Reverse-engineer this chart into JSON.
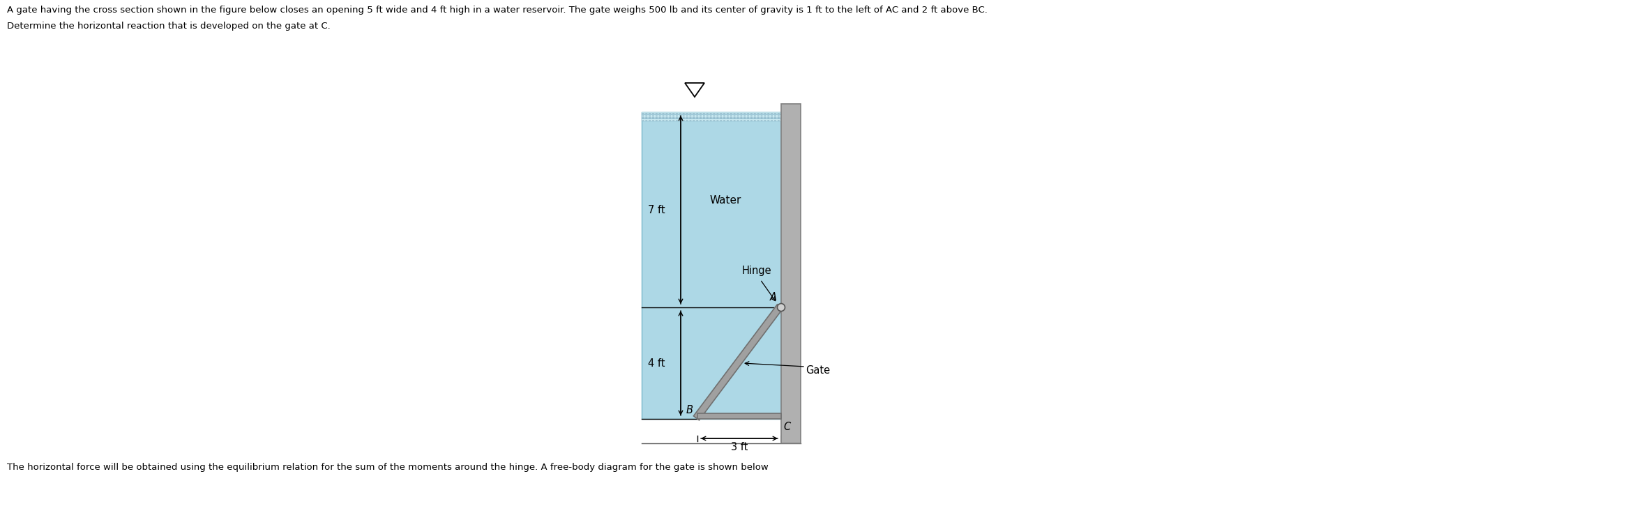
{
  "title_line1": "A gate having the cross section shown in the figure below closes an opening 5 ft wide and 4 ft high in a water reservoir. The gate weighs 500 lb and its center of gravity is 1 ft to the left of AC and 2 ft above BC.",
  "title_line2": "Determine the horizontal reaction that is developed on the gate at C.",
  "bottom_text": "The horizontal force will be obtained using the equilibrium relation for the sum of the moments around the hinge. A free-body diagram for the gate is shown below",
  "water_color": "#add8e6",
  "gate_color": "#a0a0a0",
  "gate_edge": "#707070",
  "wall_color": "#b0b0b0",
  "wall_edge": "#808080",
  "hatch_fill": "#c8e8f0",
  "bg_color": "#ffffff",
  "label_7ft": "7 ft",
  "label_4ft": "4 ft",
  "label_3ft": "3 ft",
  "label_water": "Water",
  "label_hinge": "Hinge",
  "label_gate": "Gate",
  "label_A": "A",
  "label_B": "B",
  "label_C": "C",
  "fontsize_text": 9.5,
  "fontsize_labels": 10.5
}
